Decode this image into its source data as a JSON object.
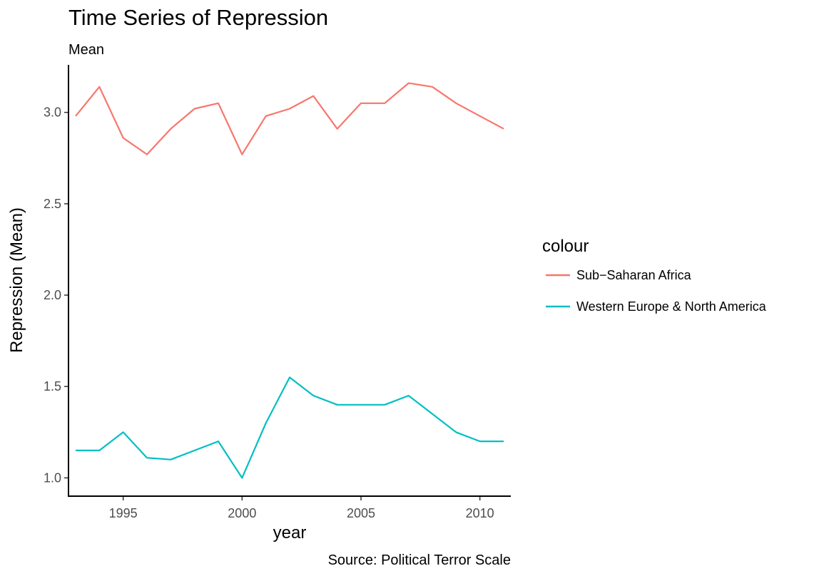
{
  "chart_data": {
    "type": "line",
    "title": "Time Series of Repression",
    "subtitle": "Mean",
    "xlabel": "year",
    "ylabel": "Repression (Mean)",
    "caption": "Source: Political Terror Scale",
    "legend_title": "colour",
    "legend_position": "right",
    "grid": false,
    "xlim": [
      1992.7,
      2011.3
    ],
    "ylim": [
      0.9,
      3.26
    ],
    "x_ticks": [
      1995,
      2000,
      2005,
      2010
    ],
    "y_ticks": [
      1.0,
      1.5,
      2.0,
      2.5,
      3.0
    ],
    "y_tick_labels": [
      "1.0",
      "1.5",
      "2.0",
      "2.5",
      "3.0"
    ],
    "x": [
      1993,
      1994,
      1995,
      1996,
      1997,
      1998,
      1999,
      2000,
      2001,
      2002,
      2003,
      2004,
      2005,
      2006,
      2007,
      2008,
      2009,
      2010,
      2011
    ],
    "series": [
      {
        "name": "Sub−Saharan Africa",
        "color": "#F8766D",
        "values": [
          2.98,
          3.14,
          2.86,
          2.77,
          2.91,
          3.02,
          3.05,
          2.77,
          2.98,
          3.02,
          3.09,
          2.91,
          3.05,
          3.05,
          3.16,
          3.14,
          3.05,
          2.98,
          2.91
        ]
      },
      {
        "name": "Western Europe & North America",
        "color": "#00BFC4",
        "values": [
          1.15,
          1.15,
          1.25,
          1.11,
          1.1,
          1.15,
          1.2,
          1.0,
          1.3,
          1.55,
          1.45,
          1.4,
          1.4,
          1.4,
          1.45,
          1.35,
          1.25,
          1.2,
          1.2
        ]
      }
    ]
  }
}
